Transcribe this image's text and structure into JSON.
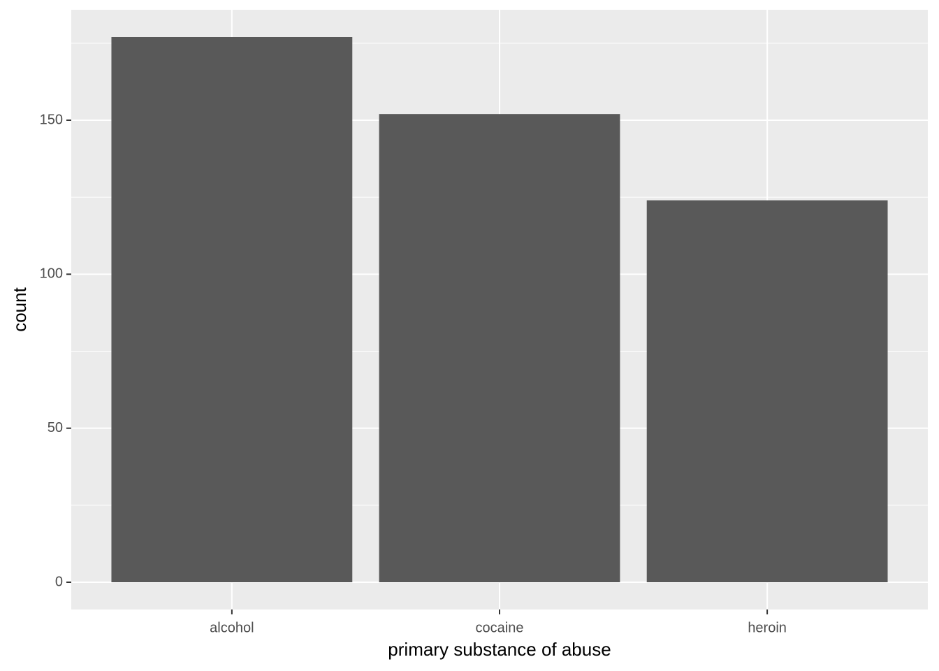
{
  "chart_data": {
    "type": "bar",
    "x_label": "primary substance of abuse",
    "y_label": "count",
    "categories": [
      "alcohol",
      "cocaine",
      "heroin"
    ],
    "values": [
      177,
      152,
      124
    ],
    "color": "#595959",
    "ylim": [
      -8.85,
      185.85
    ],
    "yticks": [
      0,
      50,
      100,
      150
    ],
    "minor_yticks": [
      25,
      75,
      125,
      175
    ],
    "grid": true
  }
}
